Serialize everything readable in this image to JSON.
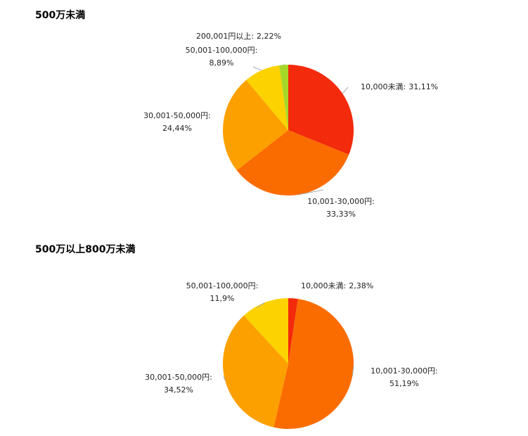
{
  "chart_data": [
    {
      "type": "pie",
      "title": "500万未満",
      "categories": [
        "10,000未満:",
        "10,001-30,000円:",
        "30,001-50,000円:",
        "50,001-100,000円:",
        "200,001円以上:"
      ],
      "values": [
        31.11,
        33.33,
        24.44,
        8.89,
        2.22
      ],
      "value_labels": [
        "31,11%",
        "33,33%",
        "24,44%",
        "8,89%",
        "2,22%"
      ],
      "colors": [
        "#f32a0b",
        "#fb6c00",
        "#fca000",
        "#fcd200",
        "#a6d829"
      ]
    },
    {
      "type": "pie",
      "title": "500万以上800万未満",
      "categories": [
        "10,000未満:",
        "10,001-30,000円:",
        "30,001-50,000円:",
        "50,001-100,000円:"
      ],
      "values": [
        2.38,
        51.19,
        34.52,
        11.9
      ],
      "value_labels": [
        "2,38%",
        "51,19%",
        "34,52%",
        "11,9%"
      ],
      "colors": [
        "#f32a0b",
        "#fb6c00",
        "#fca000",
        "#fcd200"
      ]
    }
  ]
}
